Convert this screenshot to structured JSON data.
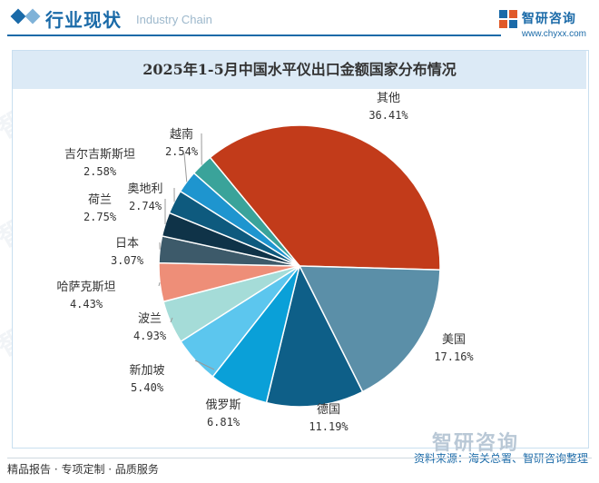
{
  "header": {
    "title": "行业现状",
    "subtitle": "Industry Chain",
    "brand_name": "智研咨询",
    "brand_url": "www.chyxx.com"
  },
  "chart_data": {
    "type": "pie",
    "title": "2025年1-5月中国水平仪出口金额国家分布情况",
    "unit": "%",
    "slices": [
      {
        "label": "其他",
        "value": 36.41,
        "display": "36.41%",
        "color": "#c23b1a"
      },
      {
        "label": "美国",
        "value": 17.16,
        "display": "17.16%",
        "color": "#5b8fa8"
      },
      {
        "label": "德国",
        "value": 11.19,
        "display": "11.19%",
        "color": "#0e5f88"
      },
      {
        "label": "俄罗斯",
        "value": 6.81,
        "display": "6.81%",
        "color": "#0aa0d8"
      },
      {
        "label": "新加坡",
        "value": 5.4,
        "display": "5.40%",
        "color": "#5cc6ee"
      },
      {
        "label": "波兰",
        "value": 4.93,
        "display": "4.93%",
        "color": "#a5dcd8"
      },
      {
        "label": "哈萨克斯坦",
        "value": 4.43,
        "display": "4.43%",
        "color": "#ee8e78"
      },
      {
        "label": "日本",
        "value": 3.07,
        "display": "3.07%",
        "color": "#3d5a6a"
      },
      {
        "label": "荷兰",
        "value": 2.75,
        "display": "2.75%",
        "color": "#0f3348"
      },
      {
        "label": "奥地利",
        "value": 2.74,
        "display": "2.74%",
        "color": "#0e5a7e"
      },
      {
        "label": "吉尔吉斯斯坦",
        "value": 2.58,
        "display": "2.58%",
        "color": "#1e95cf"
      },
      {
        "label": "越南",
        "value": 2.54,
        "display": "2.54%",
        "color": "#3aa39a"
      }
    ]
  },
  "footer": {
    "left": "精品报告 · 专项定制 · 品质服务",
    "source": "资料来源：海关总署、智研咨询整理",
    "logo_text": "智研咨询"
  },
  "watermark_text": "智研咨询"
}
